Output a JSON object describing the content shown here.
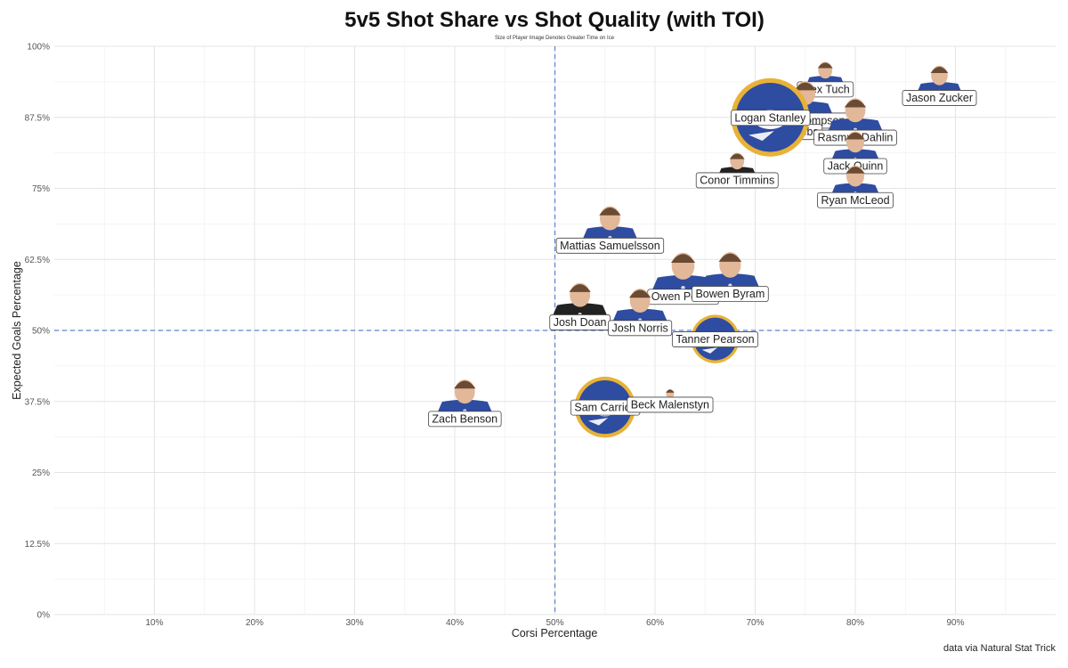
{
  "chart_data": {
    "type": "scatter",
    "title": "5v5 Shot Share vs Shot Quality (with TOI)",
    "subtitle": "Size of Player Image Denotes Greater Time on Ice",
    "xlabel": "Corsi Percentage",
    "ylabel": "Expected Goals Percentage",
    "caption": "data via Natural Stat Trick",
    "xlim": [
      0,
      100
    ],
    "ylim": [
      0,
      100
    ],
    "x_ticks": [
      "10%",
      "20%",
      "30%",
      "40%",
      "50%",
      "60%",
      "70%",
      "80%",
      "90%"
    ],
    "y_ticks": [
      "0%",
      "12.5%",
      "25%",
      "37.5%",
      "50%",
      "62.5%",
      "75%",
      "87.5%",
      "100%"
    ],
    "reference_lines": {
      "x": 50,
      "y": 50
    },
    "grid": true,
    "colors": {
      "jersey": "#2e4ca0",
      "dark_jersey": "#222222",
      "team_gold": "#e8b238",
      "skin": "#e2b899",
      "reference_line": "#5b7fd1"
    },
    "points": [
      {
        "name": "Jason Zucker",
        "x": 88.4,
        "y": 91.0,
        "size": 0.45,
        "marker": "player"
      },
      {
        "name": "Alex Tuch",
        "x": 77.0,
        "y": 92.5,
        "size": 0.35,
        "marker": "player"
      },
      {
        "name": "Tage Thompson",
        "x": 75.0,
        "y": 87.0,
        "size": 0.6,
        "marker": "player"
      },
      {
        "name": "Peyton Krebs",
        "x": 73.0,
        "y": 85.0,
        "size": 0.5,
        "marker": "player"
      },
      {
        "name": "Logan Stanley",
        "x": 71.5,
        "y": 87.5,
        "size": 1.0,
        "marker": "logo"
      },
      {
        "name": "Rasmus Dahlin",
        "x": 80.0,
        "y": 84.0,
        "size": 0.6,
        "marker": "player"
      },
      {
        "name": "Jack Quinn",
        "x": 80.0,
        "y": 79.0,
        "size": 0.5,
        "marker": "player"
      },
      {
        "name": "Ryan McLeod",
        "x": 80.0,
        "y": 73.0,
        "size": 0.5,
        "marker": "player"
      },
      {
        "name": "Conor Timmins",
        "x": 68.2,
        "y": 76.5,
        "size": 0.35,
        "marker": "player-dark"
      },
      {
        "name": "Mattias Samuelsson",
        "x": 55.5,
        "y": 65.0,
        "size": 0.6,
        "marker": "player"
      },
      {
        "name": "Owen Power",
        "x": 62.8,
        "y": 56.0,
        "size": 0.7,
        "marker": "player"
      },
      {
        "name": "Bowen Byram",
        "x": 67.5,
        "y": 56.5,
        "size": 0.65,
        "marker": "player"
      },
      {
        "name": "Josh Doan",
        "x": 52.5,
        "y": 51.5,
        "size": 0.6,
        "marker": "player-dark"
      },
      {
        "name": "Josh Norris",
        "x": 58.5,
        "y": 50.5,
        "size": 0.6,
        "marker": "player"
      },
      {
        "name": "Tanner Pearson",
        "x": 66.0,
        "y": 48.5,
        "size": 0.4,
        "marker": "logo"
      },
      {
        "name": "Zach Benson",
        "x": 41.0,
        "y": 34.5,
        "size": 0.6,
        "marker": "player"
      },
      {
        "name": "Sam Carrick",
        "x": 55.0,
        "y": 36.5,
        "size": 0.65,
        "marker": "logo"
      },
      {
        "name": "Beck Malenstyn",
        "x": 61.5,
        "y": 37.0,
        "size": 0.1,
        "marker": "player"
      }
    ]
  }
}
